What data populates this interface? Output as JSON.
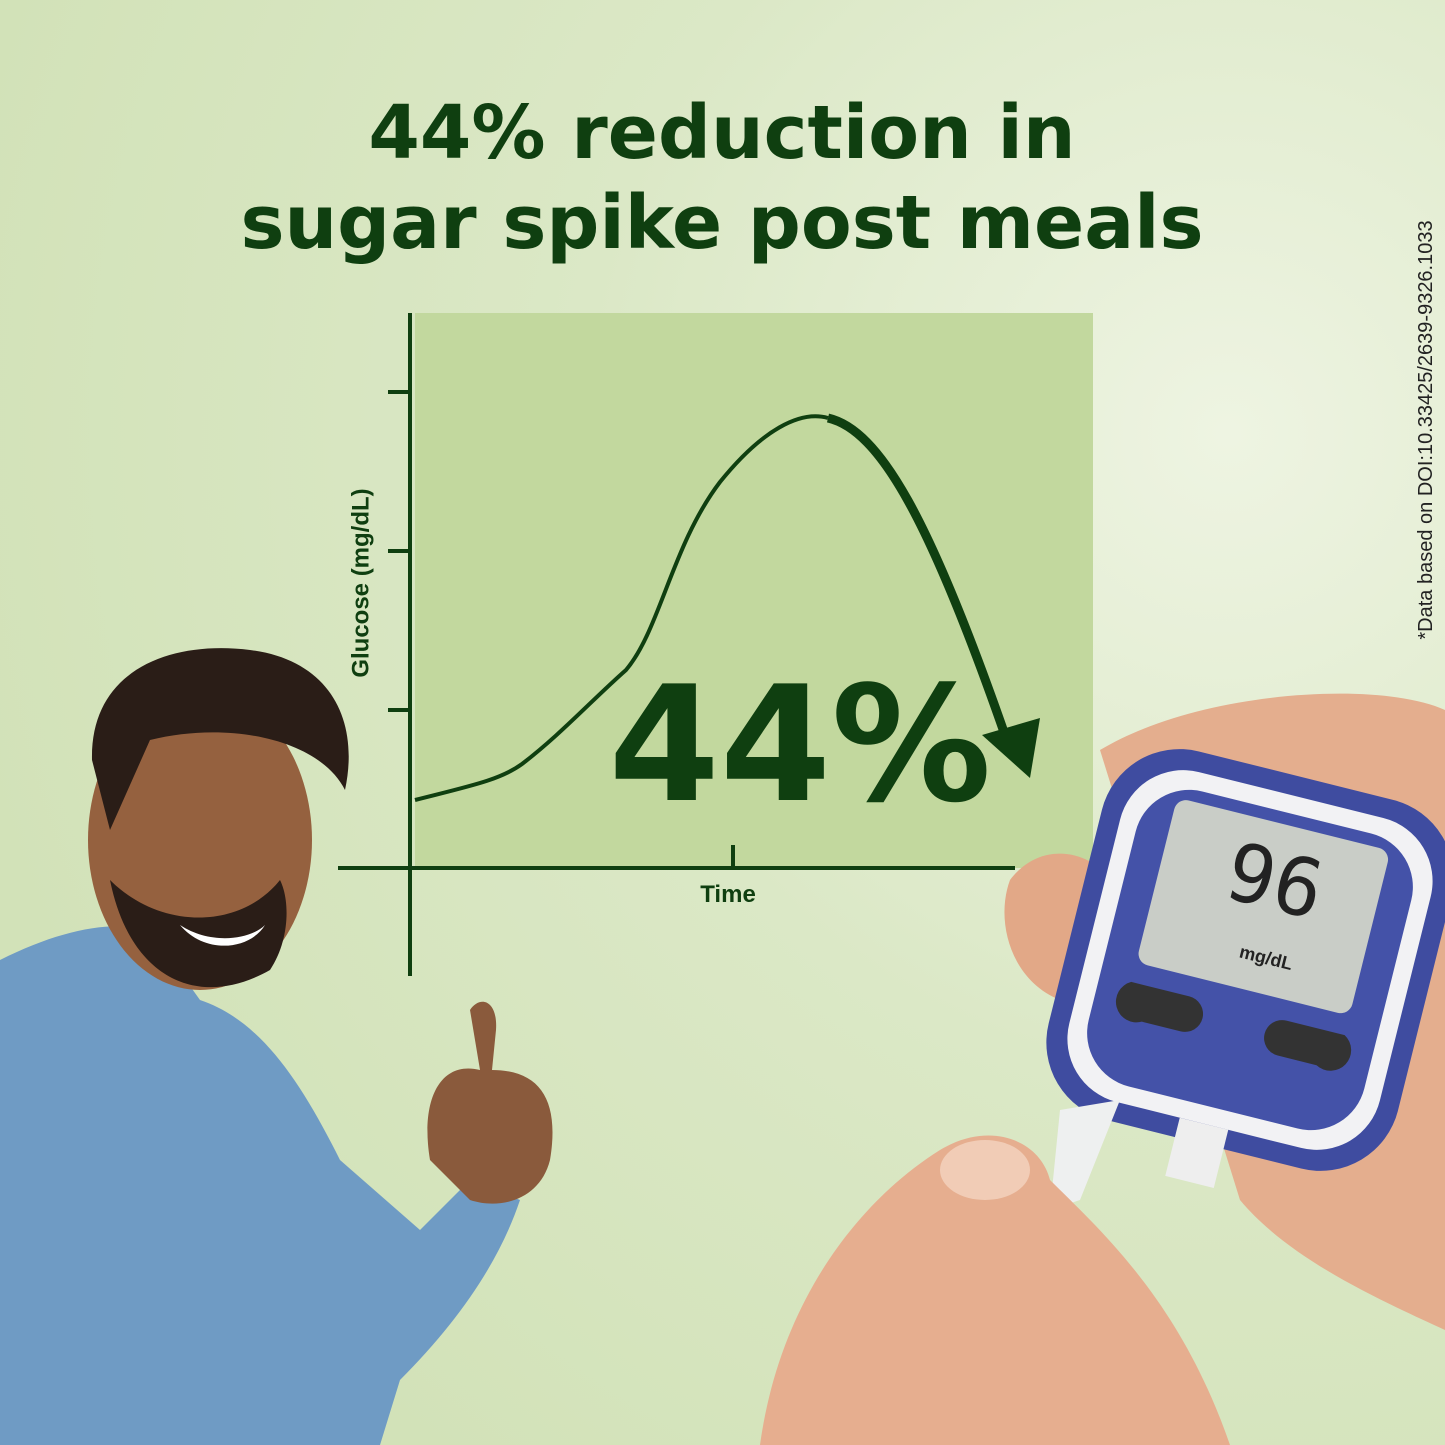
{
  "header": {
    "title_lines": [
      "44% reduction in",
      "sugar spike post meals"
    ]
  },
  "chart": {
    "y_axis_label": "Glucose (mg/dL)",
    "x_axis_label": "Time",
    "stat": "44%"
  },
  "meter": {
    "reading": "96",
    "unit": "mg/dL"
  },
  "footnote": "*Data based on DOI:10.33425/2639-9326.1033"
}
